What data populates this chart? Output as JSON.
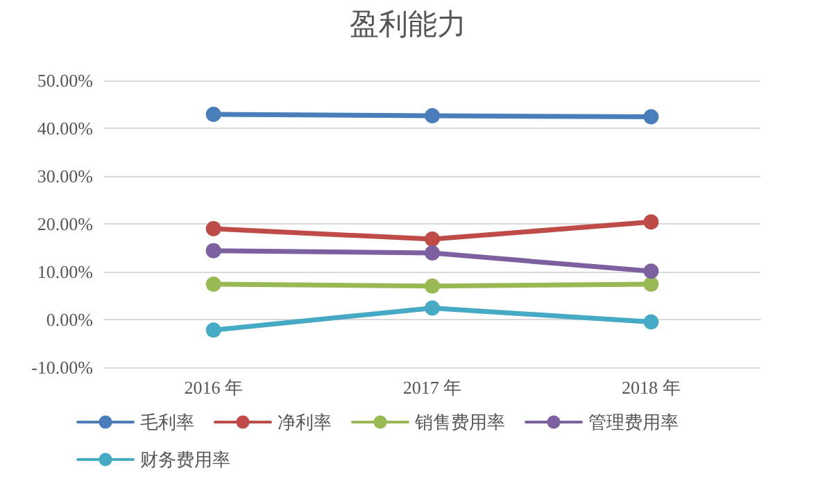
{
  "chart_data": {
    "type": "line",
    "title": "盈利能力",
    "categories": [
      "2016 年",
      "2017 年",
      "2018 年"
    ],
    "series": [
      {
        "name": "毛利率",
        "color": "#4a7ebb",
        "values": [
          42.9,
          42.6,
          42.4
        ]
      },
      {
        "name": "净利率",
        "color": "#be4b48",
        "values": [
          19.0,
          16.8,
          20.4
        ]
      },
      {
        "name": "销售费用率",
        "color": "#98b954",
        "values": [
          7.4,
          7.0,
          7.4
        ]
      },
      {
        "name": "管理费用率",
        "color": "#7d60a0",
        "values": [
          14.4,
          13.9,
          10.1
        ]
      },
      {
        "name": "财务费用率",
        "color": "#46aac5",
        "values": [
          -2.2,
          2.4,
          -0.5
        ]
      }
    ],
    "ylim": [
      -10,
      50
    ],
    "yticks": [
      {
        "value": -10,
        "label": "-10.00%"
      },
      {
        "value": 0,
        "label": "0.00%"
      },
      {
        "value": 10,
        "label": "10.00%"
      },
      {
        "value": 20,
        "label": "20.00%"
      },
      {
        "value": 30,
        "label": "30.00%"
      },
      {
        "value": 40,
        "label": "40.00%"
      },
      {
        "value": 50,
        "label": "50.00%"
      }
    ],
    "grid": "y",
    "legend": "bottom",
    "marker": "circle",
    "line_style": "solid"
  }
}
